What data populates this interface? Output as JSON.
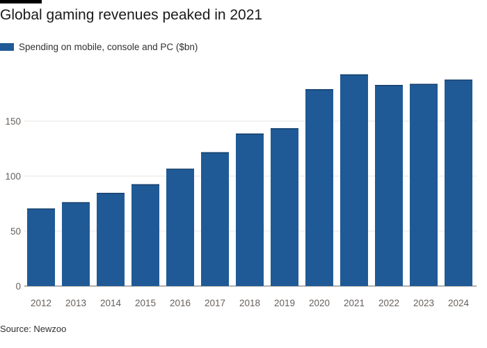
{
  "title": "Global gaming revenues peaked in 2021",
  "source": "Source: Newzoo",
  "colors": {
    "bar": "#1f5a96",
    "bar_edge": "#163f6c",
    "grid": "#e9e6e3",
    "axis": "#66605c"
  },
  "chart_data": {
    "type": "bar",
    "title": "Global gaming revenues peaked in 2021",
    "xlabel": "",
    "ylabel": "",
    "categories": [
      "2012",
      "2013",
      "2014",
      "2015",
      "2016",
      "2017",
      "2018",
      "2019",
      "2020",
      "2021",
      "2022",
      "2023",
      "2024"
    ],
    "series": [
      {
        "name": "Spending on mobile, console and PC ($bn)",
        "values": [
          70.6,
          76.3,
          84.7,
          92.6,
          106.7,
          121.7,
          138.7,
          143.5,
          179.0,
          192.5,
          182.9,
          183.9,
          187.7
        ]
      }
    ],
    "ylim": [
      0,
      200
    ],
    "yticks": [
      0,
      50,
      100,
      150
    ],
    "grid": true,
    "legend": "top-left"
  }
}
